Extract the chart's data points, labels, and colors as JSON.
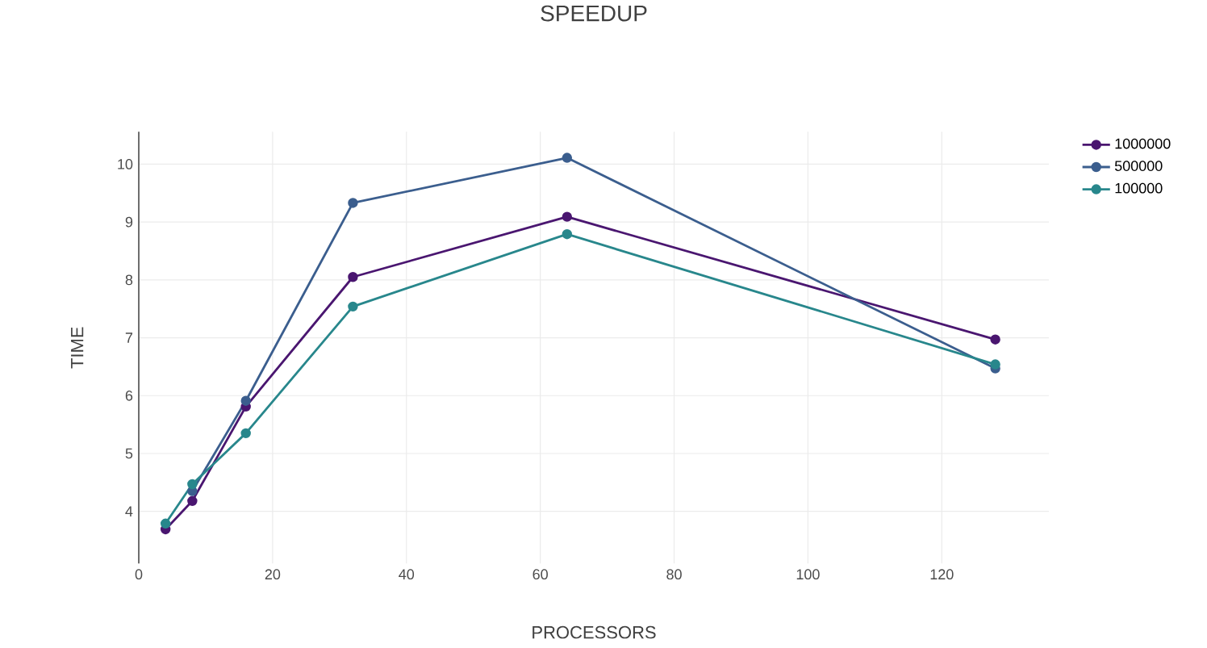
{
  "chart_data": {
    "type": "line",
    "title": "SPEEDUP",
    "xlabel": "PROCESSORS",
    "ylabel": "TIME",
    "x": [
      4,
      8,
      16,
      32,
      64,
      128
    ],
    "series": [
      {
        "name": "1000000",
        "color": "#4a1670",
        "values": [
          3.69,
          4.18,
          5.81,
          8.05,
          9.09,
          6.97
        ]
      },
      {
        "name": "500000",
        "color": "#3b5e8e",
        "values": [
          null,
          4.35,
          5.91,
          9.33,
          10.11,
          6.47
        ]
      },
      {
        "name": "100000",
        "color": "#28878c",
        "values": [
          3.79,
          4.47,
          5.35,
          7.54,
          8.79,
          6.54
        ]
      }
    ],
    "xlim": [
      0,
      136
    ],
    "ylim": [
      3.1,
      10.56
    ],
    "xticks": [
      0,
      20,
      40,
      60,
      80,
      100,
      120
    ],
    "yticks": [
      4,
      5,
      6,
      7,
      8,
      9,
      10
    ],
    "grid": true,
    "legend": "top right",
    "marker": "circle",
    "line_style": "solid"
  }
}
